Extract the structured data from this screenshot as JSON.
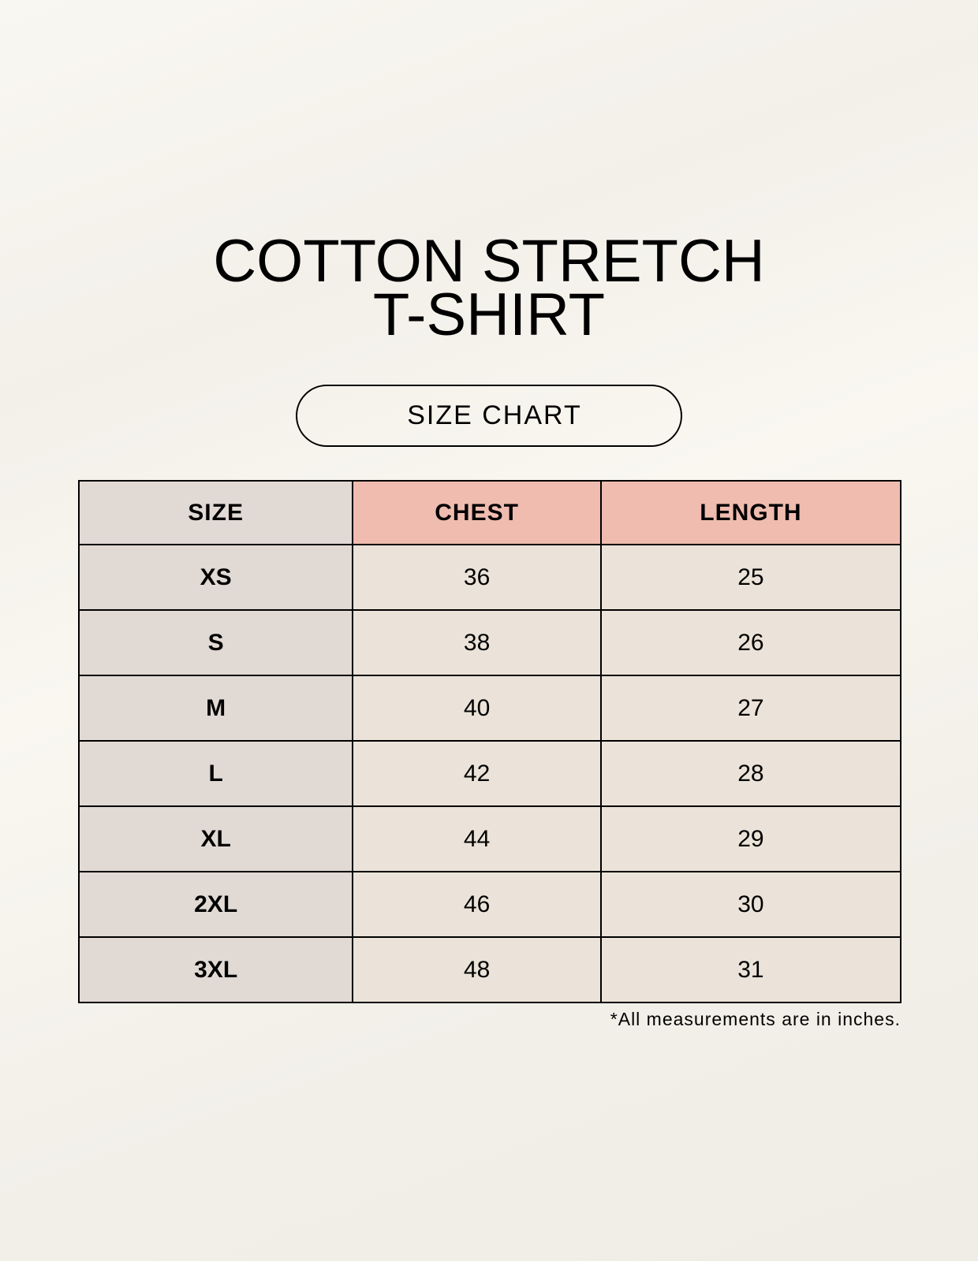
{
  "title": {
    "line1": "COTTON STRETCH",
    "line2": "T-SHIRT"
  },
  "subtitle": "SIZE CHART",
  "table": {
    "headers": [
      "SIZE",
      "CHEST",
      "LENGTH"
    ],
    "rows": [
      [
        "XS",
        "36",
        "25"
      ],
      [
        "S",
        "38",
        "26"
      ],
      [
        "M",
        "40",
        "27"
      ],
      [
        "L",
        "42",
        "28"
      ],
      [
        "XL",
        "44",
        "29"
      ],
      [
        "2XL",
        "46",
        "30"
      ],
      [
        "3XL",
        "48",
        "31"
      ]
    ]
  },
  "footnote": "*All measurements are in inches.",
  "colors": {
    "size_column": "#e1d9d4",
    "header_accent": "#efbcaf",
    "value_cells": "#ebe3d9",
    "background": "#f8f6f0"
  }
}
